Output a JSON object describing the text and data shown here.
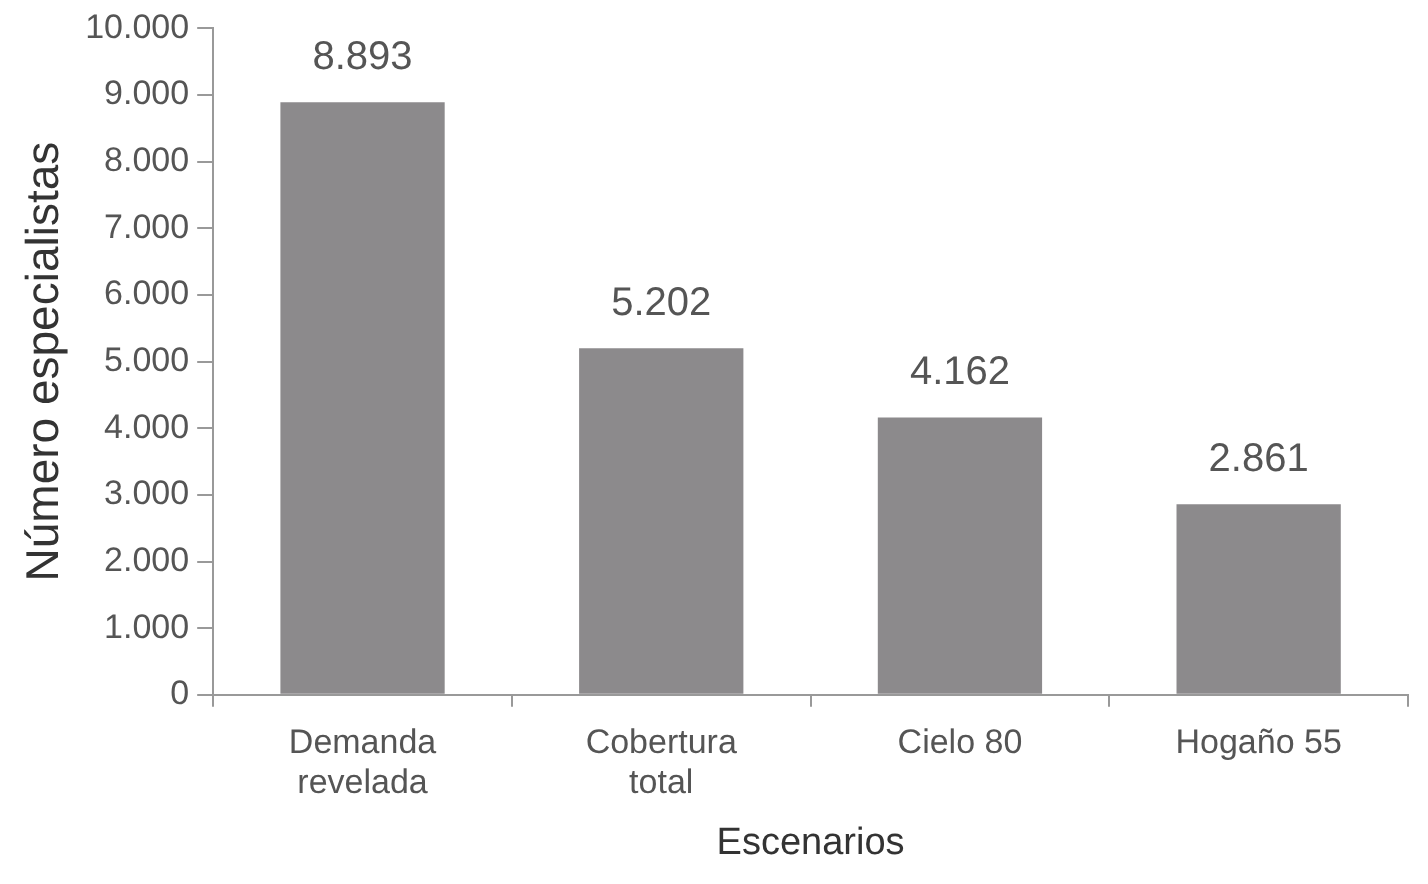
{
  "chart_data": {
    "type": "bar",
    "xlabel": "Escenarios",
    "ylabel": "Número especialistas",
    "categories": [
      "Demanda\nrevelada",
      "Cobertura\ntotal",
      "Cielo 80",
      "Hogaño 55"
    ],
    "values": [
      8893,
      5202,
      4162,
      2861
    ],
    "value_labels": [
      "8.893",
      "5.202",
      "4.162",
      "2.861"
    ],
    "color": "#8c8a8c",
    "ylim": [
      0,
      10000
    ],
    "yticks": [
      {
        "value": 0,
        "label": "0"
      },
      {
        "value": 1000,
        "label": "1.000"
      },
      {
        "value": 2000,
        "label": "2.000"
      },
      {
        "value": 3000,
        "label": "3.000"
      },
      {
        "value": 4000,
        "label": "4.000"
      },
      {
        "value": 5000,
        "label": "5.000"
      },
      {
        "value": 6000,
        "label": "6.000"
      },
      {
        "value": 7000,
        "label": "7.000"
      },
      {
        "value": 8000,
        "label": "8.000"
      },
      {
        "value": 9000,
        "label": "9.000"
      },
      {
        "value": 10000,
        "label": "10.000"
      }
    ],
    "grid": false,
    "legend": false
  }
}
